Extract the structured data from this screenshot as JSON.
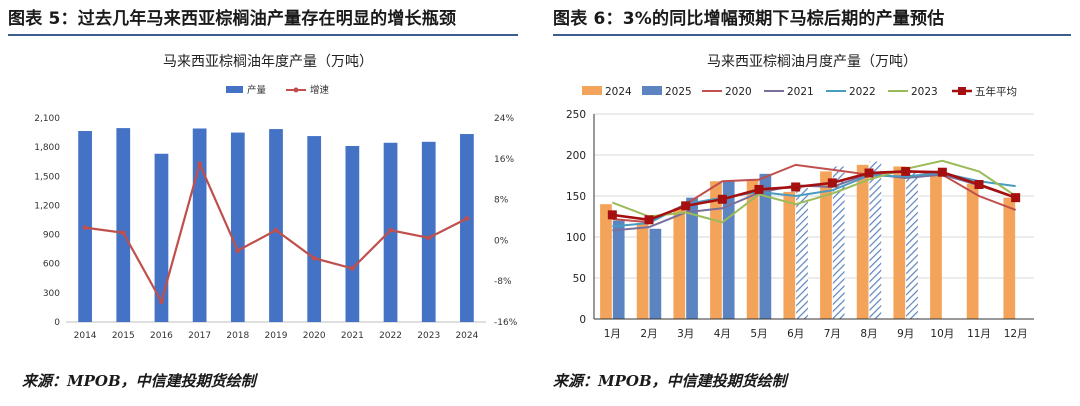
{
  "left_panel": {
    "figure_title": "图表 5：过去几年马来西亚棕榈油产量存在明显的增长瓶颈",
    "source": "来源：MPOB，中信建投期货绘制"
  },
  "right_panel": {
    "figure_title": "图表 6：3%的同比增幅预期下马棕后期的产量预估",
    "source": "来源：MPOB，中信建投期货绘制"
  },
  "colors": {
    "bar_blue": "#4472c4",
    "growth_line": "#c0504d",
    "s2024": "#f4a45a",
    "s2025": "#5b84c0",
    "s2020": "#c0504d",
    "s2021": "#7a6f9c",
    "s2022": "#4a9bc0",
    "s2023": "#9bbb59",
    "avg": "#a50f0f",
    "rule": "#3b5e8e"
  },
  "chart_data": [
    {
      "type": "bar",
      "title": "马来西亚棕榈油年度产量（万吨）",
      "categories": [
        "2014",
        "2015",
        "2016",
        "2017",
        "2018",
        "2019",
        "2020",
        "2021",
        "2022",
        "2023",
        "2024"
      ],
      "series": [
        {
          "name": "产量",
          "kind": "bar",
          "axis": "left",
          "values": [
            1966,
            1996,
            1732,
            1992,
            1950,
            1986,
            1914,
            1812,
            1845,
            1855,
            1935
          ]
        },
        {
          "name": "增速",
          "kind": "line",
          "axis": "right",
          "unit": "%",
          "values": [
            2.5,
            1.5,
            -12.0,
            15.0,
            -2.0,
            2.0,
            -3.5,
            -5.5,
            2.0,
            0.5,
            4.3
          ]
        }
      ],
      "y_left": {
        "min": 0,
        "max": 2100,
        "ticks": [
          0,
          300,
          600,
          900,
          1200,
          1500,
          1800,
          2100
        ],
        "tick_labels": [
          "0",
          "300",
          "600",
          "900",
          "1,200",
          "1,500",
          "1,800",
          "2,100"
        ]
      },
      "y_right": {
        "min": -16,
        "max": 24,
        "ticks": [
          -16,
          -8,
          0,
          8,
          16,
          24
        ],
        "tick_labels": [
          "-16%",
          "-8%",
          "0%",
          "8%",
          "16%",
          "24%"
        ]
      },
      "legend_position": "top-center",
      "grid": false
    },
    {
      "type": "bar",
      "title": "马来西亚棕榈油月度产量（万吨）",
      "categories": [
        "1月",
        "2月",
        "3月",
        "4月",
        "5月",
        "6月",
        "7月",
        "8月",
        "9月",
        "10月",
        "11月",
        "12月"
      ],
      "series": [
        {
          "name": "2024",
          "kind": "bar",
          "values": [
            140,
            117,
            135,
            168,
            170,
            155,
            180,
            188,
            186,
            180,
            165,
            148
          ]
        },
        {
          "name": "2025",
          "kind": "bar",
          "hatched_from_index": 5,
          "values": [
            120,
            110,
            148,
            168,
            177,
            160,
            186,
            192,
            180,
            null,
            null,
            null
          ]
        },
        {
          "name": "2020",
          "kind": "line",
          "values": [
            122,
            118,
            140,
            168,
            170,
            188,
            182,
            176,
            181,
            176,
            150,
            133
          ]
        },
        {
          "name": "2021",
          "kind": "line",
          "values": [
            108,
            112,
            130,
            135,
            154,
            163,
            161,
            177,
            172,
            176,
            163,
            148
          ]
        },
        {
          "name": "2022",
          "kind": "line",
          "values": [
            113,
            117,
            140,
            148,
            155,
            150,
            157,
            175,
            174,
            178,
            168,
            162
          ]
        },
        {
          "name": "2023",
          "kind": "line",
          "values": [
            142,
            125,
            130,
            118,
            152,
            140,
            153,
            170,
            183,
            193,
            180,
            150
          ]
        },
        {
          "name": "五年平均",
          "kind": "line-marker",
          "values": [
            127,
            121,
            138,
            146,
            158,
            161,
            166,
            178,
            180,
            179,
            164,
            148
          ]
        }
      ],
      "y": {
        "min": 0,
        "max": 250,
        "ticks": [
          0,
          50,
          100,
          150,
          200,
          250
        ]
      },
      "legend_position": "top",
      "grid": true
    }
  ]
}
